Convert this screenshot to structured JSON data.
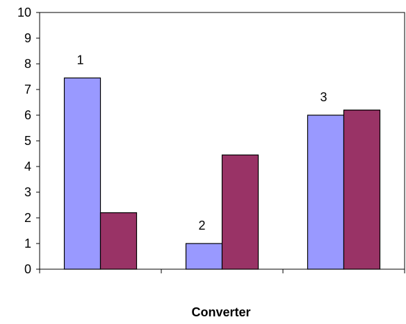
{
  "chart_data": {
    "type": "bar",
    "title": "",
    "xlabel": "Converter",
    "ylabel": "",
    "categories": [
      "",
      "",
      ""
    ],
    "series": [
      {
        "values": [
          7.45,
          1.0,
          6.0
        ],
        "color": "#9999ff"
      },
      {
        "values": [
          2.2,
          4.45,
          6.2
        ],
        "color": "#993366"
      }
    ],
    "data_labels": [
      "1",
      "2",
      "3"
    ],
    "ylim": [
      0,
      10
    ],
    "yticks": [
      0,
      1,
      2,
      3,
      4,
      5,
      6,
      7,
      8,
      9,
      10
    ],
    "yticks_text": [
      "0",
      "1",
      "2",
      "3",
      "4",
      "5",
      "6",
      "7",
      "8",
      "9",
      "10"
    ],
    "grid": false,
    "legend": "none"
  }
}
